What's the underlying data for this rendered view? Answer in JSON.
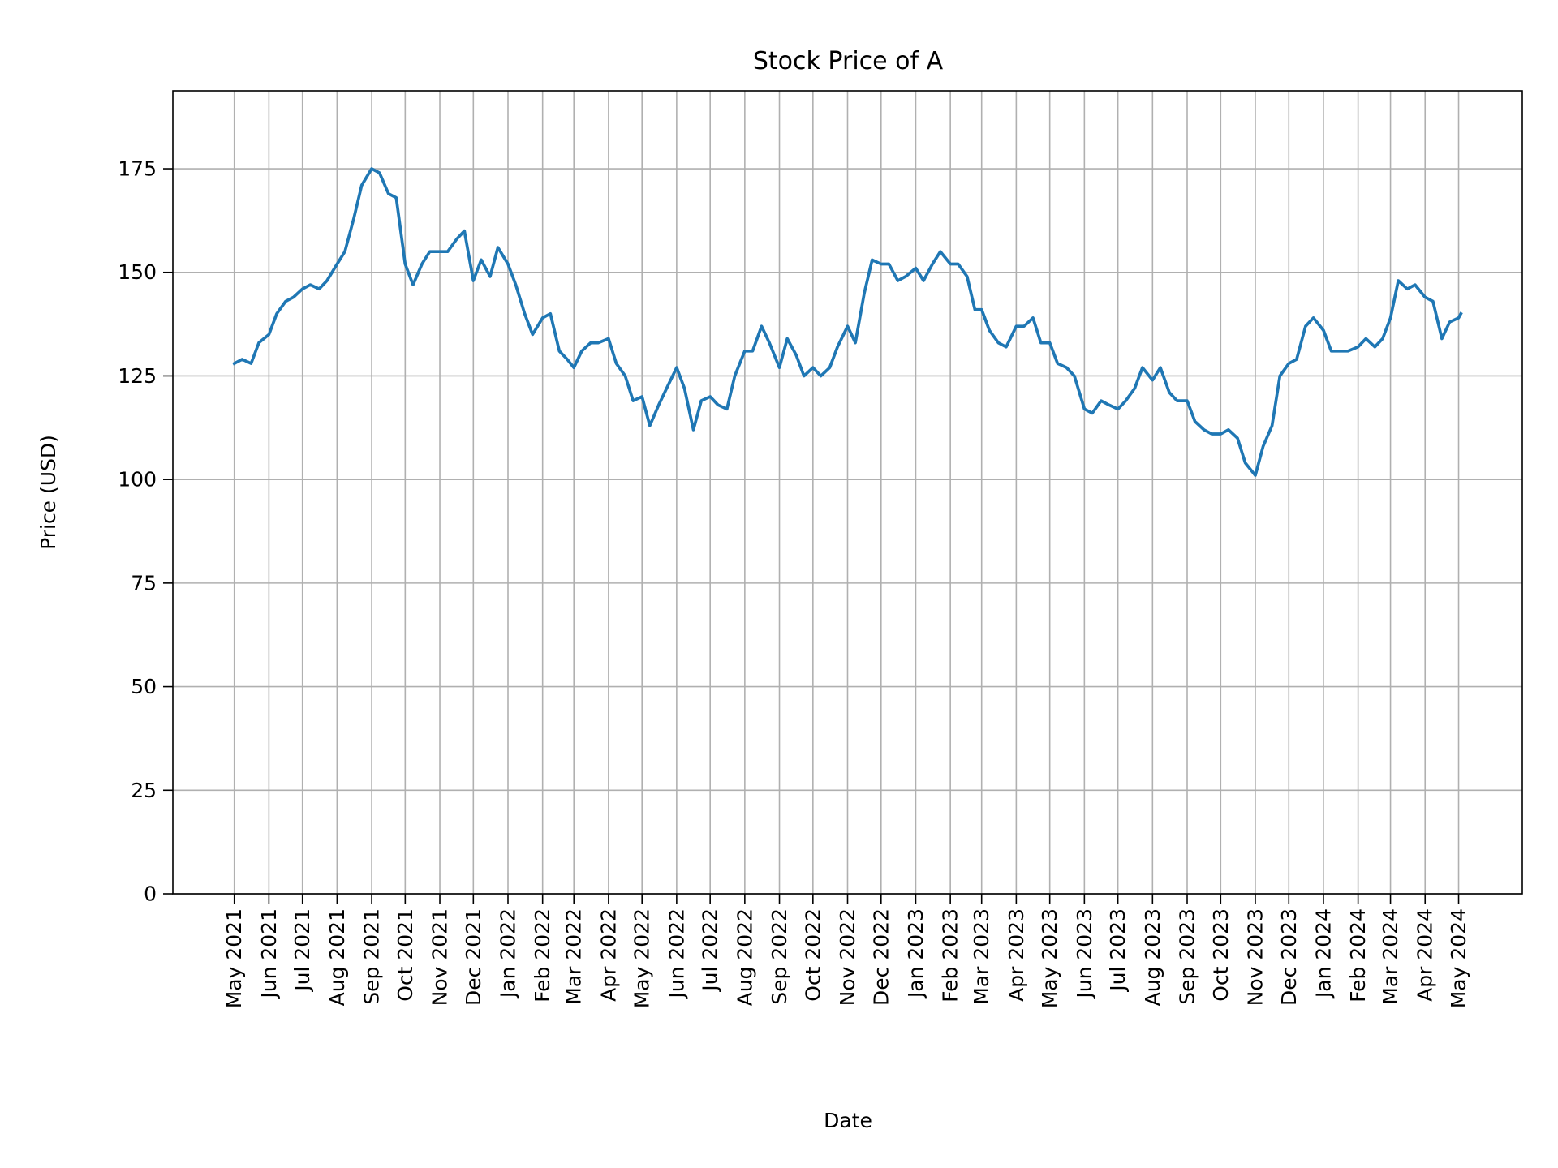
{
  "chart_data": {
    "type": "line",
    "title": "Stock Price of A",
    "xlabel": "Date",
    "ylabel": "Price (USD)",
    "xlim": [
      "2021-03-07",
      "2024-06-27"
    ],
    "ylim": [
      0,
      193.8
    ],
    "grid": true,
    "line_color": "#1f77b4",
    "yticks": [
      0,
      25,
      50,
      75,
      100,
      125,
      150,
      175
    ],
    "xticks": [
      {
        "date": "2021-05-01",
        "label": "May 2021"
      },
      {
        "date": "2021-06-01",
        "label": "Jun 2021"
      },
      {
        "date": "2021-07-01",
        "label": "Jul 2021"
      },
      {
        "date": "2021-08-01",
        "label": "Aug 2021"
      },
      {
        "date": "2021-09-01",
        "label": "Sep 2021"
      },
      {
        "date": "2021-10-01",
        "label": "Oct 2021"
      },
      {
        "date": "2021-11-01",
        "label": "Nov 2021"
      },
      {
        "date": "2021-12-01",
        "label": "Dec 2021"
      },
      {
        "date": "2022-01-01",
        "label": "Jan 2022"
      },
      {
        "date": "2022-02-01",
        "label": "Feb 2022"
      },
      {
        "date": "2022-03-01",
        "label": "Mar 2022"
      },
      {
        "date": "2022-04-01",
        "label": "Apr 2022"
      },
      {
        "date": "2022-05-01",
        "label": "May 2022"
      },
      {
        "date": "2022-06-01",
        "label": "Jun 2022"
      },
      {
        "date": "2022-07-01",
        "label": "Jul 2022"
      },
      {
        "date": "2022-08-01",
        "label": "Aug 2022"
      },
      {
        "date": "2022-09-01",
        "label": "Sep 2022"
      },
      {
        "date": "2022-10-01",
        "label": "Oct 2022"
      },
      {
        "date": "2022-11-01",
        "label": "Nov 2022"
      },
      {
        "date": "2022-12-01",
        "label": "Dec 2022"
      },
      {
        "date": "2023-01-01",
        "label": "Jan 2023"
      },
      {
        "date": "2023-02-01",
        "label": "Feb 2023"
      },
      {
        "date": "2023-03-01",
        "label": "Mar 2023"
      },
      {
        "date": "2023-04-01",
        "label": "Apr 2023"
      },
      {
        "date": "2023-05-01",
        "label": "May 2023"
      },
      {
        "date": "2023-06-01",
        "label": "Jun 2023"
      },
      {
        "date": "2023-07-01",
        "label": "Jul 2023"
      },
      {
        "date": "2023-08-01",
        "label": "Aug 2023"
      },
      {
        "date": "2023-09-01",
        "label": "Sep 2023"
      },
      {
        "date": "2023-10-01",
        "label": "Oct 2023"
      },
      {
        "date": "2023-11-01",
        "label": "Nov 2023"
      },
      {
        "date": "2023-12-01",
        "label": "Dec 2023"
      },
      {
        "date": "2024-01-01",
        "label": "Jan 2024"
      },
      {
        "date": "2024-02-01",
        "label": "Feb 2024"
      },
      {
        "date": "2024-03-01",
        "label": "Mar 2024"
      },
      {
        "date": "2024-04-01",
        "label": "Apr 2024"
      },
      {
        "date": "2024-05-01",
        "label": "May 2024"
      }
    ],
    "series": [
      {
        "x": [
          "2021-05-01",
          "2021-05-08",
          "2021-05-16",
          "2021-05-23",
          "2021-06-01",
          "2021-06-08",
          "2021-06-16",
          "2021-06-23",
          "2021-07-01",
          "2021-07-08",
          "2021-07-16",
          "2021-07-23",
          "2021-08-01",
          "2021-08-08",
          "2021-08-16",
          "2021-08-23",
          "2021-09-01",
          "2021-09-08",
          "2021-09-16",
          "2021-09-23",
          "2021-10-01",
          "2021-10-08",
          "2021-10-16",
          "2021-10-23",
          "2021-11-01",
          "2021-11-08",
          "2021-11-16",
          "2021-11-23",
          "2021-12-01",
          "2021-12-08",
          "2021-12-16",
          "2021-12-23",
          "2022-01-01",
          "2022-01-08",
          "2022-01-16",
          "2022-01-23",
          "2022-02-01",
          "2022-02-08",
          "2022-02-16",
          "2022-02-23",
          "2022-03-01",
          "2022-03-08",
          "2022-03-16",
          "2022-03-23",
          "2022-04-01",
          "2022-04-08",
          "2022-04-16",
          "2022-04-23",
          "2022-05-01",
          "2022-05-08",
          "2022-05-16",
          "2022-05-23",
          "2022-06-01",
          "2022-06-08",
          "2022-06-16",
          "2022-06-23",
          "2022-07-01",
          "2022-07-08",
          "2022-07-16",
          "2022-07-23",
          "2022-08-01",
          "2022-08-08",
          "2022-08-16",
          "2022-08-23",
          "2022-09-01",
          "2022-09-08",
          "2022-09-16",
          "2022-09-23",
          "2022-10-01",
          "2022-10-08",
          "2022-10-16",
          "2022-10-23",
          "2022-11-01",
          "2022-11-08",
          "2022-11-16",
          "2022-11-23",
          "2022-12-01",
          "2022-12-08",
          "2022-12-16",
          "2022-12-23",
          "2023-01-01",
          "2023-01-08",
          "2023-01-16",
          "2023-01-23",
          "2023-02-01",
          "2023-02-08",
          "2023-02-16",
          "2023-02-23",
          "2023-03-01",
          "2023-03-08",
          "2023-03-16",
          "2023-03-23",
          "2023-04-01",
          "2023-04-08",
          "2023-04-16",
          "2023-04-23",
          "2023-05-01",
          "2023-05-08",
          "2023-05-16",
          "2023-05-23",
          "2023-06-01",
          "2023-06-08",
          "2023-06-16",
          "2023-06-23",
          "2023-07-01",
          "2023-07-08",
          "2023-07-16",
          "2023-07-23",
          "2023-08-01",
          "2023-08-08",
          "2023-08-16",
          "2023-08-23",
          "2023-09-01",
          "2023-09-08",
          "2023-09-16",
          "2023-09-23",
          "2023-10-01",
          "2023-10-08",
          "2023-10-16",
          "2023-10-23",
          "2023-11-01",
          "2023-11-08",
          "2023-11-16",
          "2023-11-23",
          "2023-12-01",
          "2023-12-08",
          "2023-12-16",
          "2023-12-23",
          "2024-01-01",
          "2024-01-08",
          "2024-01-16",
          "2024-01-23",
          "2024-02-01",
          "2024-02-08",
          "2024-02-16",
          "2024-02-23",
          "2024-03-01",
          "2024-03-08",
          "2024-03-16",
          "2024-03-23",
          "2024-04-01",
          "2024-04-08",
          "2024-04-16",
          "2024-04-23",
          "2024-05-01",
          "2024-05-03"
        ],
        "y": [
          128,
          129,
          128,
          133,
          135,
          140,
          143,
          144,
          146,
          147,
          146,
          148,
          152,
          155,
          163,
          171,
          175,
          174,
          169,
          168,
          152,
          147,
          152,
          155,
          155,
          155,
          158,
          160,
          148,
          153,
          149,
          156,
          152,
          147,
          140,
          135,
          139,
          140,
          131,
          129,
          127,
          131,
          133,
          133,
          134,
          128,
          125,
          119,
          120,
          113,
          118,
          122,
          127,
          122,
          112,
          119,
          120,
          118,
          117,
          125,
          131,
          131,
          137,
          133,
          127,
          134,
          130,
          125,
          127,
          125,
          127,
          132,
          137,
          133,
          145,
          153,
          152,
          152,
          148,
          149,
          151,
          148,
          152,
          155,
          152,
          152,
          149,
          141,
          141,
          136,
          133,
          132,
          137,
          137,
          139,
          133,
          133,
          128,
          127,
          125,
          117,
          116,
          119,
          118,
          117,
          119,
          122,
          127,
          124,
          127,
          121,
          119,
          119,
          114,
          112,
          111,
          111,
          112,
          110,
          104,
          101,
          108,
          113,
          125,
          128,
          129,
          137,
          139,
          136,
          131,
          131,
          131,
          132,
          134,
          132,
          134,
          139,
          148,
          146,
          147,
          144,
          143,
          134,
          138,
          139,
          140
        ]
      }
    ]
  }
}
